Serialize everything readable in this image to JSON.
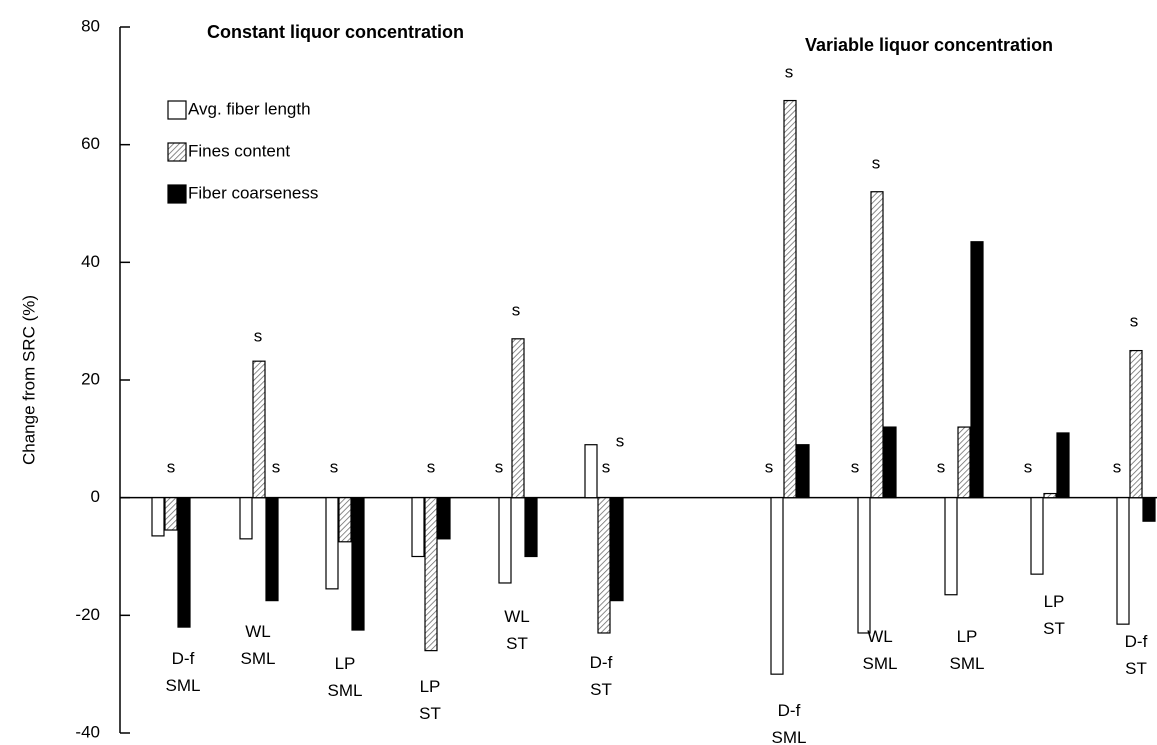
{
  "chart_data": {
    "type": "bar",
    "y_label": "Change from SRC (%)",
    "group_titles": [
      "Constant liquor concentration",
      "Variable liquor concentration"
    ],
    "categories": [
      [
        "D-f",
        "SML"
      ],
      [
        "WL",
        "SML"
      ],
      [
        "LP",
        "SML"
      ],
      [
        "LP",
        "ST"
      ],
      [
        "WL",
        "ST"
      ],
      [
        "D-f",
        "ST"
      ],
      [
        "D-f",
        "SML"
      ],
      [
        "WL",
        "SML"
      ],
      [
        "LP",
        "SML"
      ],
      [
        "LP",
        "ST"
      ],
      [
        "D-f",
        "ST"
      ]
    ],
    "series": [
      {
        "name": "Avg. fiber length",
        "color": "#ffffff",
        "values": [
          -6.5,
          -7,
          -15.5,
          -10,
          -14.5,
          9,
          -30,
          -23,
          -16.5,
          -13,
          -21.5
        ]
      },
      {
        "name": "Fines content",
        "color": "#999999",
        "hatch": true,
        "values": [
          -5.5,
          23.2,
          -7.5,
          -26,
          27,
          -23,
          67.5,
          52,
          12,
          0.7,
          25
        ]
      },
      {
        "name": "Fiber coarseness",
        "color": "#000000",
        "values": [
          -22,
          -17.5,
          -22.5,
          -7,
          -10,
          -17.5,
          9,
          12,
          43.5,
          11,
          -4
        ]
      }
    ],
    "annotations": [
      "s",
      "s",
      "s",
      "s",
      "s",
      "s",
      "s",
      "s",
      "s",
      "s",
      "s",
      "s",
      "s",
      "s",
      "s",
      "s",
      "s"
    ],
    "ylim": [
      -40,
      80
    ],
    "yticks": [
      -40,
      -20,
      0,
      20,
      40,
      60,
      80
    ]
  }
}
